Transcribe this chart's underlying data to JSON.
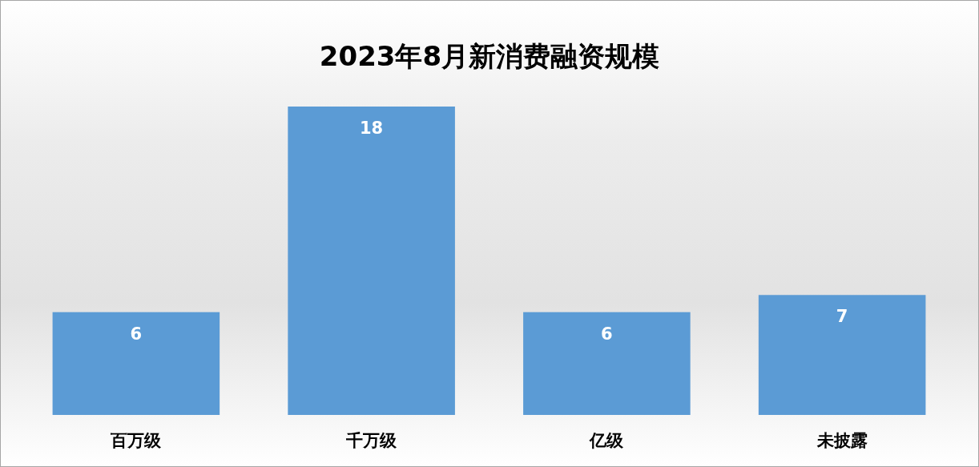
{
  "chart_data": {
    "type": "bar",
    "title": "2023年8月新消费融资规模",
    "categories": [
      "百万级",
      "千万级",
      "亿级",
      "未披露"
    ],
    "values": [
      6,
      18,
      6,
      7
    ],
    "color": "#5b9bd5",
    "data_labels": true,
    "grid": false
  }
}
